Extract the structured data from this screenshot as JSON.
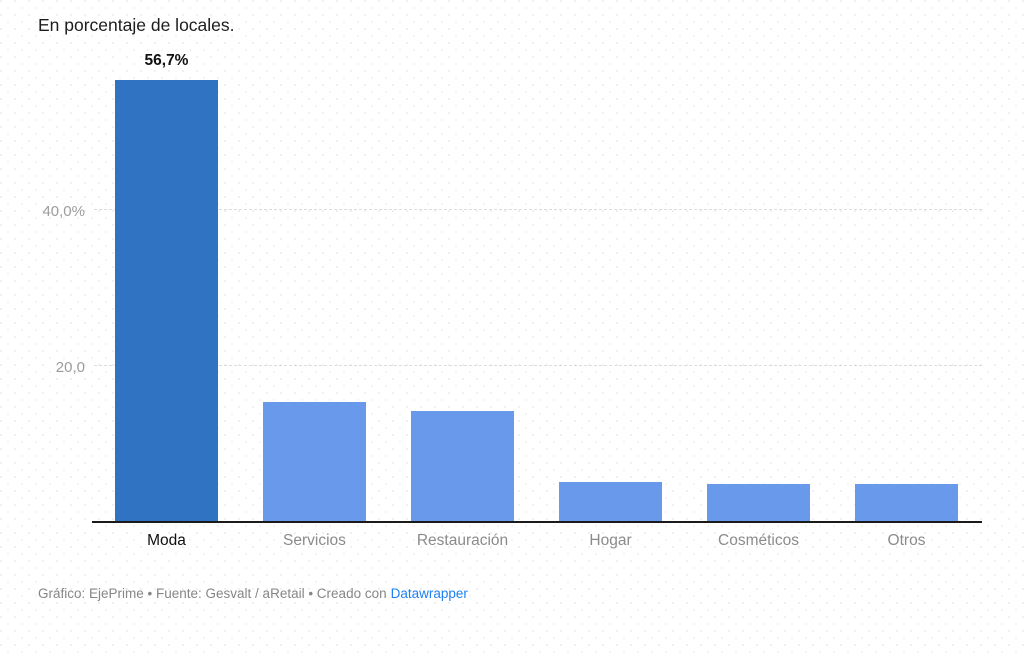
{
  "title": "En porcentaje de locales.",
  "colors": {
    "highlight_bar": "#2f73c2",
    "bar": "#6899ea",
    "axis_line": "#1a1a1a",
    "gridline": "#dcdcdc",
    "tick_label": "#9c9c9c",
    "category_label": "#8b8b8b",
    "category_label_highlight": "#0f0f0f",
    "footer_text": "#868686",
    "link": "#1e80f0"
  },
  "chart_data": {
    "type": "bar",
    "title": "En porcentaje de locales.",
    "categories": [
      "Moda",
      "Servicios",
      "Restauración",
      "Hogar",
      "Cosméticos",
      "Otros"
    ],
    "values": [
      56.7,
      15.3,
      14.1,
      5.0,
      4.7,
      4.7
    ],
    "value_labels": [
      "56,7%",
      "",
      "",
      "",
      "",
      ""
    ],
    "highlighted_category": "Moda",
    "y_ticks": [
      {
        "value": 40,
        "label": "40,0%"
      },
      {
        "value": 20,
        "label": "20,0"
      }
    ],
    "ylim": [
      0,
      60
    ],
    "xlabel": "",
    "ylabel": "",
    "grid": "horizontal-dashed",
    "legend": "none"
  },
  "footer": {
    "text": "Gráfico: EjePrime • Fuente: Gesvalt / aRetail • Creado con",
    "link_label": "Datawrapper"
  }
}
